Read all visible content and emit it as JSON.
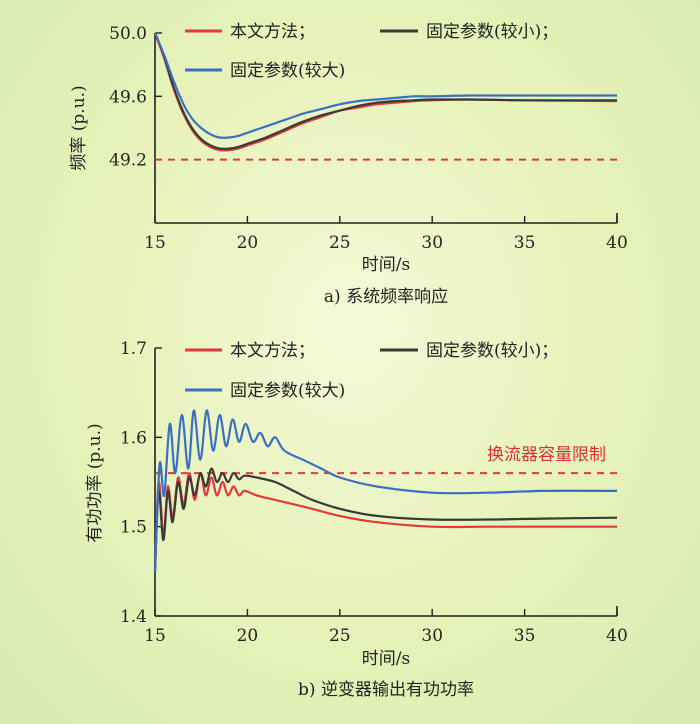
{
  "chart_data": [
    {
      "type": "line",
      "caption": "a) 系统频率响应",
      "xlabel": "时间/s",
      "ylabel": "频率 (p.u.)",
      "xlim": [
        15,
        40
      ],
      "ylim": [
        48.8,
        50.0
      ],
      "xticks": [
        15,
        20,
        25,
        30,
        35,
        40
      ],
      "xtick_labels": [
        "15",
        "20",
        "25",
        "30",
        "35",
        "40"
      ],
      "yticks": [
        49.2,
        49.6,
        50.0
      ],
      "ytick_labels": [
        "49.2",
        "49.6",
        "50.0"
      ],
      "grid": false,
      "legend_position": "top",
      "series": [
        {
          "name": "本文方法；",
          "color": "#e0393e",
          "x": [
            15,
            15.5,
            16,
            16.5,
            17,
            17.5,
            18,
            18.5,
            19,
            19.5,
            20,
            21,
            22,
            23,
            24,
            25,
            26,
            27,
            28,
            29,
            30,
            32,
            35,
            38,
            40
          ],
          "y": [
            50.0,
            49.84,
            49.65,
            49.5,
            49.39,
            49.32,
            49.28,
            49.26,
            49.26,
            49.27,
            49.29,
            49.33,
            49.38,
            49.43,
            49.47,
            49.51,
            49.53,
            49.55,
            49.56,
            49.57,
            49.575,
            49.58,
            49.575,
            49.572,
            49.57
          ]
        },
        {
          "name": "固定参数(较小)；",
          "color": "#3a3a3a",
          "x": [
            15,
            15.5,
            16,
            16.5,
            17,
            17.5,
            18,
            18.5,
            19,
            19.5,
            20,
            21,
            22,
            23,
            24,
            25,
            26,
            27,
            28,
            29,
            30,
            32,
            35,
            38,
            40
          ],
          "y": [
            50.0,
            49.85,
            49.66,
            49.51,
            49.4,
            49.33,
            49.29,
            49.27,
            49.27,
            49.28,
            49.3,
            49.34,
            49.39,
            49.44,
            49.48,
            49.51,
            49.54,
            49.56,
            49.57,
            49.575,
            49.58,
            49.58,
            49.575,
            49.575,
            49.575
          ]
        },
        {
          "name": "固定参数(较大)",
          "color": "#3b6fc2",
          "x": [
            15,
            15.5,
            16,
            16.5,
            17,
            17.5,
            18,
            18.5,
            19,
            19.5,
            20,
            21,
            22,
            23,
            24,
            25,
            26,
            27,
            28,
            29,
            30,
            32,
            35,
            38,
            40
          ],
          "y": [
            50.0,
            49.86,
            49.7,
            49.56,
            49.46,
            49.4,
            49.36,
            49.34,
            49.34,
            49.35,
            49.37,
            49.41,
            49.45,
            49.49,
            49.52,
            49.55,
            49.57,
            49.58,
            49.59,
            49.6,
            49.6,
            49.605,
            49.605,
            49.605,
            49.605
          ]
        }
      ],
      "reference_lines": [
        {
          "y": 49.2,
          "color": "#e0393e",
          "style": "dashed",
          "label": ""
        }
      ]
    },
    {
      "type": "line",
      "caption": "b) 逆变器输出有功功率",
      "xlabel": "时间/s",
      "ylabel": "有功功率 (p.u.)",
      "xlim": [
        15,
        40
      ],
      "ylim": [
        1.4,
        1.7
      ],
      "xticks": [
        15,
        20,
        25,
        30,
        35,
        40
      ],
      "xtick_labels": [
        "15",
        "20",
        "25",
        "30",
        "35",
        "40"
      ],
      "yticks": [
        1.4,
        1.5,
        1.6,
        1.7
      ],
      "ytick_labels": [
        "1.4",
        "1.5",
        "1.6",
        "1.7"
      ],
      "grid": false,
      "legend_position": "top",
      "series": [
        {
          "name": "本文方法；",
          "color": "#e0393e",
          "x": [
            15,
            15.2,
            15.45,
            15.7,
            15.95,
            16.25,
            16.55,
            16.85,
            17.15,
            17.45,
            17.75,
            18.05,
            18.35,
            18.65,
            18.95,
            19.25,
            19.55,
            19.85,
            20.5,
            21.5,
            22.5,
            23.5,
            25,
            27,
            30,
            33,
            36,
            40
          ],
          "y": [
            1.45,
            1.55,
            1.49,
            1.545,
            1.51,
            1.555,
            1.525,
            1.56,
            1.53,
            1.56,
            1.535,
            1.555,
            1.535,
            1.55,
            1.535,
            1.545,
            1.535,
            1.54,
            1.535,
            1.53,
            1.525,
            1.52,
            1.512,
            1.505,
            1.5,
            1.5,
            1.5,
            1.5
          ]
        },
        {
          "name": "固定参数(较小)；",
          "color": "#3a3a3a",
          "x": [
            15,
            15.2,
            15.45,
            15.7,
            15.95,
            16.25,
            16.55,
            16.85,
            17.15,
            17.45,
            17.75,
            18.05,
            18.35,
            18.65,
            18.95,
            19.25,
            19.55,
            19.85,
            20.5,
            21.5,
            22.5,
            23.5,
            25,
            27,
            30,
            33,
            36,
            40
          ],
          "y": [
            1.45,
            1.54,
            1.485,
            1.54,
            1.505,
            1.55,
            1.52,
            1.555,
            1.535,
            1.56,
            1.545,
            1.565,
            1.55,
            1.56,
            1.55,
            1.56,
            1.553,
            1.557,
            1.555,
            1.55,
            1.54,
            1.53,
            1.52,
            1.512,
            1.508,
            1.508,
            1.509,
            1.51
          ]
        },
        {
          "name": "固定参数(较大)",
          "color": "#3b6fc2",
          "x": [
            15,
            15.25,
            15.5,
            15.8,
            16.1,
            16.45,
            16.8,
            17.1,
            17.45,
            17.8,
            18.15,
            18.5,
            18.85,
            19.2,
            19.55,
            19.9,
            20.3,
            20.7,
            21.1,
            21.5,
            22,
            23,
            24,
            25,
            27,
            30,
            33,
            36,
            40
          ],
          "y": [
            1.45,
            1.57,
            1.535,
            1.615,
            1.56,
            1.625,
            1.565,
            1.63,
            1.575,
            1.63,
            1.585,
            1.625,
            1.59,
            1.62,
            1.595,
            1.615,
            1.595,
            1.605,
            1.59,
            1.6,
            1.585,
            1.575,
            1.565,
            1.555,
            1.545,
            1.538,
            1.538,
            1.54,
            1.54
          ]
        }
      ],
      "reference_lines": [
        {
          "y": 1.56,
          "color": "#e0393e",
          "style": "dashed",
          "label": "换流器容量限制"
        }
      ]
    }
  ]
}
